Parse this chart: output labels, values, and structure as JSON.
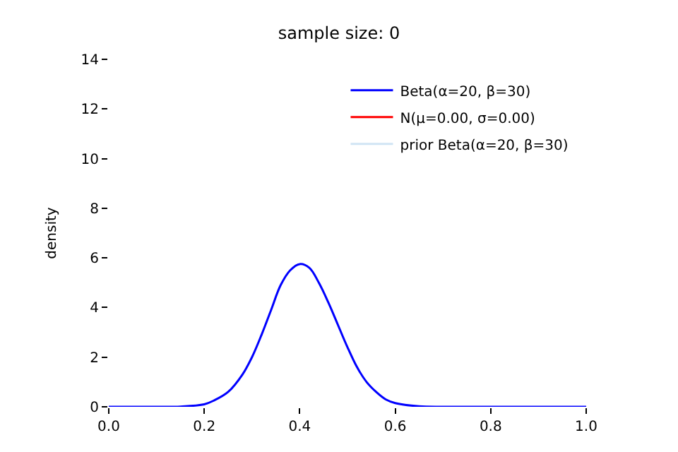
{
  "chart_data": {
    "type": "line",
    "title": "sample size: 0",
    "ylabel": "density",
    "x": [
      0.0,
      0.1,
      0.15,
      0.2,
      0.22,
      0.25,
      0.28,
      0.3,
      0.32,
      0.34,
      0.36,
      0.38,
      0.4,
      0.42,
      0.44,
      0.46,
      0.48,
      0.5,
      0.52,
      0.54,
      0.56,
      0.58,
      0.6,
      0.65,
      0.7,
      0.8,
      0.9,
      1.0
    ],
    "series": [
      {
        "name": "Beta(α=20, β=30)",
        "color": "#0000ff",
        "values": [
          0,
          0,
          0.01,
          0.1,
          0.25,
          0.6,
          1.3,
          2.0,
          2.9,
          3.9,
          4.9,
          5.5,
          5.75,
          5.6,
          5.0,
          4.2,
          3.3,
          2.4,
          1.6,
          1.0,
          0.6,
          0.3,
          0.15,
          0.02,
          0,
          0,
          0,
          0
        ]
      },
      {
        "name": "N(μ=0.00, σ=0.00)",
        "color": "#ff0000",
        "values": [
          null,
          null,
          null,
          null,
          null,
          null,
          null,
          null,
          null,
          null,
          null,
          null,
          null,
          null,
          null,
          null,
          null,
          null,
          null,
          null,
          null,
          null,
          null,
          null,
          null,
          null,
          null,
          null
        ]
      },
      {
        "name": "prior Beta(α=20, β=30)",
        "color": "#d0e4f4",
        "values": [
          null,
          null,
          null,
          null,
          null,
          null,
          null,
          null,
          null,
          null,
          null,
          null,
          null,
          null,
          null,
          null,
          null,
          null,
          null,
          null,
          null,
          null,
          null,
          null,
          null,
          null,
          null,
          null
        ]
      }
    ],
    "xlim": [
      0,
      1
    ],
    "xticks": [
      {
        "value": 0,
        "label": "0.0"
      },
      {
        "value": 0.2,
        "label": "0.2"
      },
      {
        "value": 0.4,
        "label": "0.4"
      },
      {
        "value": 0.6,
        "label": "0.6"
      },
      {
        "value": 0.8,
        "label": "0.8"
      },
      {
        "value": 1.0,
        "label": "1.0"
      }
    ],
    "ylim": [
      0,
      14
    ],
    "yticks": [
      0,
      2,
      4,
      6,
      8,
      10,
      12,
      14
    ],
    "legend": "top right"
  }
}
